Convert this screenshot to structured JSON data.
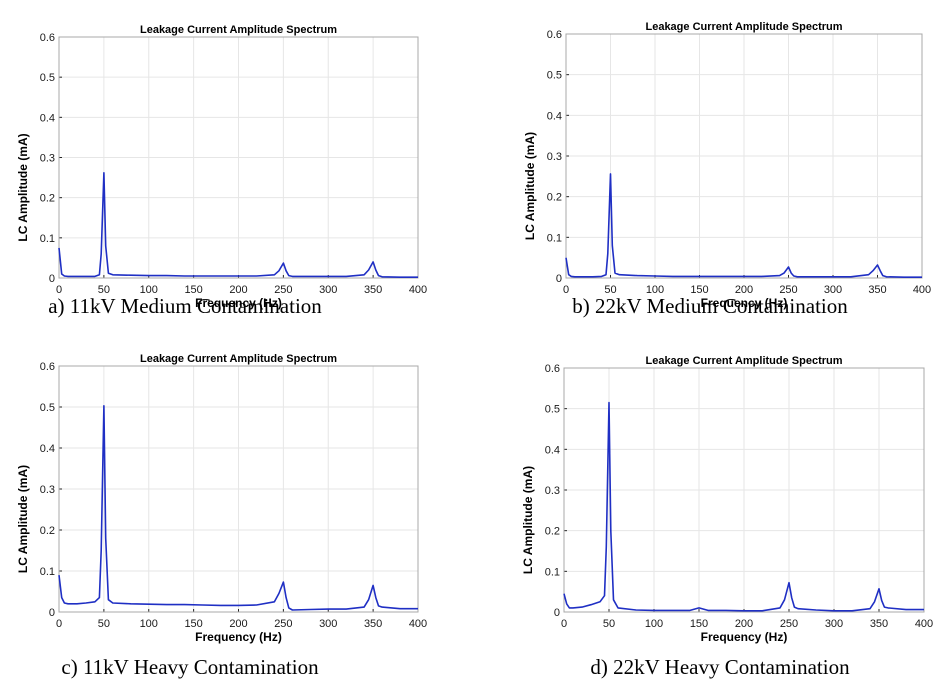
{
  "chart_data": [
    {
      "type": "line",
      "title": "Leakage Current Amplitude Spectrum",
      "xlabel": "Frequency (Hz)",
      "ylabel": "LC Amplitude (mA)",
      "caption": "a)  11kV Medium Contamination",
      "xlim": [
        0,
        400
      ],
      "ylim": [
        0,
        0.6
      ],
      "xticks": [
        "0",
        "50",
        "100",
        "150",
        "200",
        "250",
        "300",
        "350",
        "400"
      ],
      "yticks": [
        "0",
        "0.1",
        "0.2",
        "0.3",
        "0.4",
        "0.5",
        "0.6"
      ],
      "grid": true,
      "series": [
        {
          "color": "#1f2fc4",
          "x": [
            0,
            3,
            6,
            10,
            20,
            30,
            40,
            45,
            47,
            50,
            52,
            55,
            60,
            80,
            100,
            120,
            140,
            160,
            180,
            200,
            220,
            240,
            245,
            250,
            253,
            256,
            260,
            280,
            300,
            320,
            340,
            345,
            350,
            353,
            356,
            360,
            380,
            400
          ],
          "y": [
            0.075,
            0.01,
            0.005,
            0.004,
            0.004,
            0.004,
            0.004,
            0.008,
            0.06,
            0.262,
            0.08,
            0.012,
            0.008,
            0.007,
            0.006,
            0.006,
            0.005,
            0.005,
            0.005,
            0.005,
            0.005,
            0.008,
            0.018,
            0.037,
            0.018,
            0.006,
            0.004,
            0.004,
            0.004,
            0.004,
            0.008,
            0.02,
            0.04,
            0.02,
            0.006,
            0.003,
            0.002,
            0.002
          ]
        }
      ]
    },
    {
      "type": "line",
      "title": "Leakage Current Amplitude Spectrum",
      "xlabel": "Frequency (Hz)",
      "ylabel": "LC Amplitude (mA)",
      "caption": "b)  22kV Medium Contamination",
      "xlim": [
        0,
        400
      ],
      "ylim": [
        0,
        0.6
      ],
      "xticks": [
        "0",
        "50",
        "100",
        "150",
        "200",
        "250",
        "300",
        "350",
        "400"
      ],
      "yticks": [
        "0",
        "0.1",
        "0.2",
        "0.3",
        "0.4",
        "0.5",
        "0.6"
      ],
      "grid": true,
      "series": [
        {
          "color": "#1f2fc4",
          "x": [
            0,
            3,
            6,
            10,
            20,
            30,
            40,
            45,
            47,
            50,
            52,
            55,
            60,
            80,
            100,
            120,
            140,
            160,
            180,
            200,
            220,
            240,
            245,
            250,
            253,
            256,
            260,
            280,
            300,
            320,
            340,
            345,
            350,
            353,
            356,
            360,
            380,
            400
          ],
          "y": [
            0.05,
            0.008,
            0.004,
            0.003,
            0.003,
            0.003,
            0.004,
            0.008,
            0.06,
            0.256,
            0.08,
            0.012,
            0.008,
            0.006,
            0.005,
            0.004,
            0.004,
            0.004,
            0.004,
            0.004,
            0.004,
            0.006,
            0.012,
            0.027,
            0.012,
            0.005,
            0.003,
            0.003,
            0.003,
            0.003,
            0.008,
            0.018,
            0.032,
            0.018,
            0.006,
            0.003,
            0.002,
            0.002
          ]
        }
      ]
    },
    {
      "type": "line",
      "title": "Leakage Current Amplitude Spectrum",
      "xlabel": "Frequency (Hz)",
      "ylabel": "LC Amplitude (mA)",
      "caption": "c)  11kV Heavy Contamination",
      "xlim": [
        0,
        400
      ],
      "ylim": [
        0,
        0.6
      ],
      "xticks": [
        "0",
        "50",
        "100",
        "150",
        "200",
        "250",
        "300",
        "350",
        "400"
      ],
      "yticks": [
        "0",
        "0.1",
        "0.2",
        "0.3",
        "0.4",
        "0.5",
        "0.6"
      ],
      "grid": true,
      "series": [
        {
          "color": "#1f2fc4",
          "x": [
            0,
            3,
            6,
            10,
            20,
            30,
            40,
            45,
            47,
            50,
            52,
            55,
            60,
            80,
            100,
            120,
            140,
            160,
            180,
            200,
            220,
            240,
            245,
            250,
            253,
            256,
            260,
            280,
            300,
            320,
            340,
            345,
            350,
            353,
            356,
            360,
            380,
            400
          ],
          "y": [
            0.09,
            0.035,
            0.022,
            0.02,
            0.02,
            0.022,
            0.025,
            0.035,
            0.15,
            0.503,
            0.18,
            0.03,
            0.022,
            0.02,
            0.019,
            0.018,
            0.018,
            0.017,
            0.016,
            0.016,
            0.017,
            0.025,
            0.045,
            0.073,
            0.035,
            0.01,
            0.005,
            0.006,
            0.007,
            0.007,
            0.012,
            0.03,
            0.065,
            0.035,
            0.015,
            0.012,
            0.008,
            0.008
          ]
        }
      ]
    },
    {
      "type": "line",
      "title": "Leakage Current Amplitude Spectrum",
      "xlabel": "Frequency (Hz)",
      "ylabel": "LC Amplitude (mA)",
      "caption": "d)  22kV Heavy Contamination",
      "xlim": [
        0,
        400
      ],
      "ylim": [
        0,
        0.6
      ],
      "xticks": [
        "0",
        "50",
        "100",
        "150",
        "200",
        "250",
        "300",
        "350",
        "400"
      ],
      "yticks": [
        "0",
        "0.1",
        "0.2",
        "0.3",
        "0.4",
        "0.5",
        "0.6"
      ],
      "grid": true,
      "series": [
        {
          "color": "#1f2fc4",
          "x": [
            0,
            3,
            6,
            10,
            20,
            30,
            40,
            45,
            47,
            50,
            52,
            55,
            60,
            80,
            100,
            120,
            140,
            150,
            160,
            180,
            200,
            220,
            240,
            245,
            250,
            253,
            256,
            260,
            280,
            300,
            320,
            340,
            345,
            350,
            353,
            356,
            360,
            380,
            400
          ],
          "y": [
            0.045,
            0.02,
            0.01,
            0.01,
            0.012,
            0.018,
            0.025,
            0.04,
            0.16,
            0.515,
            0.2,
            0.03,
            0.01,
            0.005,
            0.004,
            0.004,
            0.004,
            0.01,
            0.004,
            0.004,
            0.003,
            0.003,
            0.01,
            0.03,
            0.072,
            0.035,
            0.012,
            0.008,
            0.005,
            0.003,
            0.003,
            0.008,
            0.025,
            0.057,
            0.028,
            0.012,
            0.01,
            0.006,
            0.006
          ]
        }
      ]
    }
  ]
}
